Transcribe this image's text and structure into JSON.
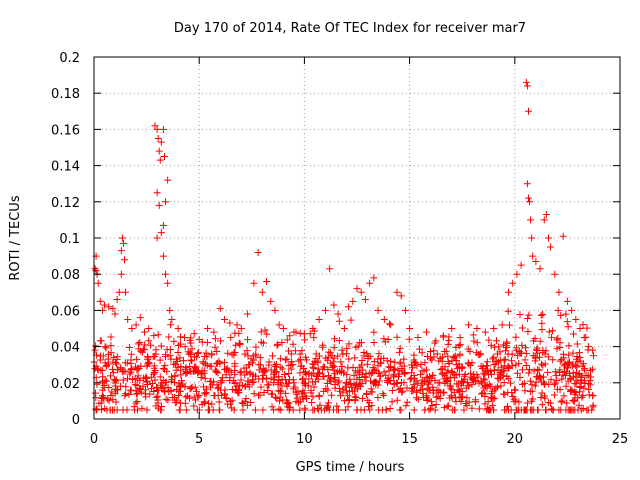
{
  "chart_data": {
    "type": "scatter",
    "title": "Day 170 of 2014, Rate Of TEC Index for receiver mar7",
    "xlabel": "GPS time / hours",
    "ylabel": "ROTI / TECUs",
    "xlim": [
      0,
      25
    ],
    "ylim": [
      0,
      0.2
    ],
    "grid": true,
    "marker": "+",
    "color": "#ff0000",
    "x_ticks": [
      0,
      5,
      10,
      15,
      20,
      25
    ],
    "x_tick_labels": [
      "0",
      "5",
      "10",
      "15",
      "20",
      "25"
    ],
    "y_ticks": [
      0,
      0.02,
      0.04,
      0.06,
      0.08,
      0.1,
      0.12,
      0.14,
      0.16,
      0.18,
      0.2
    ],
    "y_tick_labels": [
      "0",
      "0.02",
      "0.04",
      "0.06",
      "0.08",
      "0.1",
      "0.12",
      "0.14",
      "0.16",
      "0.18",
      "0.2"
    ],
    "series": [
      {
        "name": "ROTI",
        "points": [
          [
            0.05,
            0.083
          ],
          [
            0.1,
            0.082
          ],
          [
            0.15,
            0.08
          ],
          [
            0.1,
            0.09
          ],
          [
            0.2,
            0.075
          ],
          [
            0.3,
            0.065
          ],
          [
            0.4,
            0.06
          ],
          [
            0.5,
            0.063
          ],
          [
            0.7,
            0.062
          ],
          [
            0.9,
            0.061
          ],
          [
            1.0,
            0.058
          ],
          [
            1.1,
            0.066
          ],
          [
            1.2,
            0.07
          ],
          [
            1.3,
            0.08
          ],
          [
            1.3,
            0.093
          ],
          [
            1.35,
            0.1
          ],
          [
            1.4,
            0.097
          ],
          [
            1.45,
            0.088
          ],
          [
            1.5,
            0.07
          ],
          [
            1.6,
            0.055
          ],
          [
            1.8,
            0.05
          ],
          [
            2.0,
            0.052
          ],
          [
            2.2,
            0.056
          ],
          [
            2.4,
            0.048
          ],
          [
            2.6,
            0.05
          ],
          [
            2.9,
            0.162
          ],
          [
            3.0,
            0.16
          ],
          [
            3.05,
            0.155
          ],
          [
            3.1,
            0.148
          ],
          [
            3.15,
            0.143
          ],
          [
            3.2,
            0.153
          ],
          [
            3.3,
            0.16
          ],
          [
            3.35,
            0.145
          ],
          [
            3.0,
            0.125
          ],
          [
            3.1,
            0.118
          ],
          [
            3.2,
            0.103
          ],
          [
            3.3,
            0.107
          ],
          [
            3.4,
            0.12
          ],
          [
            3.5,
            0.132
          ],
          [
            3.0,
            0.1
          ],
          [
            3.3,
            0.09
          ],
          [
            3.4,
            0.08
          ],
          [
            3.5,
            0.075
          ],
          [
            3.6,
            0.06
          ],
          [
            3.7,
            0.055
          ],
          [
            4.0,
            0.05
          ],
          [
            4.3,
            0.045
          ],
          [
            4.6,
            0.042
          ],
          [
            5.0,
            0.044
          ],
          [
            5.4,
            0.05
          ],
          [
            5.7,
            0.048
          ],
          [
            6.0,
            0.061
          ],
          [
            6.2,
            0.055
          ],
          [
            6.5,
            0.045
          ],
          [
            6.8,
            0.052
          ],
          [
            7.0,
            0.05
          ],
          [
            7.3,
            0.058
          ],
          [
            7.6,
            0.075
          ],
          [
            7.8,
            0.092
          ],
          [
            8.0,
            0.07
          ],
          [
            8.2,
            0.076
          ],
          [
            8.4,
            0.065
          ],
          [
            8.6,
            0.06
          ],
          [
            8.8,
            0.052
          ],
          [
            9.0,
            0.05
          ],
          [
            9.3,
            0.046
          ],
          [
            9.6,
            0.048
          ],
          [
            10.0,
            0.047
          ],
          [
            10.4,
            0.05
          ],
          [
            10.7,
            0.055
          ],
          [
            11.0,
            0.06
          ],
          [
            11.2,
            0.083
          ],
          [
            11.4,
            0.063
          ],
          [
            11.6,
            0.058
          ],
          [
            11.9,
            0.05
          ],
          [
            12.1,
            0.062
          ],
          [
            12.3,
            0.065
          ],
          [
            12.5,
            0.072
          ],
          [
            12.7,
            0.07
          ],
          [
            12.9,
            0.066
          ],
          [
            13.1,
            0.075
          ],
          [
            13.3,
            0.078
          ],
          [
            13.5,
            0.06
          ],
          [
            13.8,
            0.055
          ],
          [
            14.1,
            0.052
          ],
          [
            14.4,
            0.07
          ],
          [
            14.6,
            0.068
          ],
          [
            14.8,
            0.06
          ],
          [
            15.0,
            0.05
          ],
          [
            15.4,
            0.045
          ],
          [
            15.8,
            0.048
          ],
          [
            16.2,
            0.042
          ],
          [
            16.6,
            0.046
          ],
          [
            17.0,
            0.05
          ],
          [
            17.4,
            0.045
          ],
          [
            17.8,
            0.052
          ],
          [
            18.2,
            0.05
          ],
          [
            18.6,
            0.048
          ],
          [
            19.0,
            0.05
          ],
          [
            19.4,
            0.052
          ],
          [
            19.7,
            0.07
          ],
          [
            19.9,
            0.075
          ],
          [
            20.1,
            0.08
          ],
          [
            20.3,
            0.085
          ],
          [
            20.55,
            0.186
          ],
          [
            20.6,
            0.184
          ],
          [
            20.65,
            0.17
          ],
          [
            20.6,
            0.13
          ],
          [
            20.65,
            0.122
          ],
          [
            20.7,
            0.12
          ],
          [
            20.75,
            0.11
          ],
          [
            20.8,
            0.1
          ],
          [
            20.85,
            0.09
          ],
          [
            21.0,
            0.087
          ],
          [
            21.2,
            0.083
          ],
          [
            21.4,
            0.11
          ],
          [
            21.5,
            0.113
          ],
          [
            21.6,
            0.1
          ],
          [
            21.7,
            0.095
          ],
          [
            21.9,
            0.08
          ],
          [
            22.1,
            0.07
          ],
          [
            22.3,
            0.101
          ],
          [
            22.5,
            0.065
          ],
          [
            22.7,
            0.06
          ],
          [
            22.9,
            0.055
          ],
          [
            23.1,
            0.05
          ],
          [
            23.3,
            0.045
          ],
          [
            23.5,
            0.04
          ],
          [
            23.7,
            0.038
          ]
        ]
      }
    ]
  }
}
